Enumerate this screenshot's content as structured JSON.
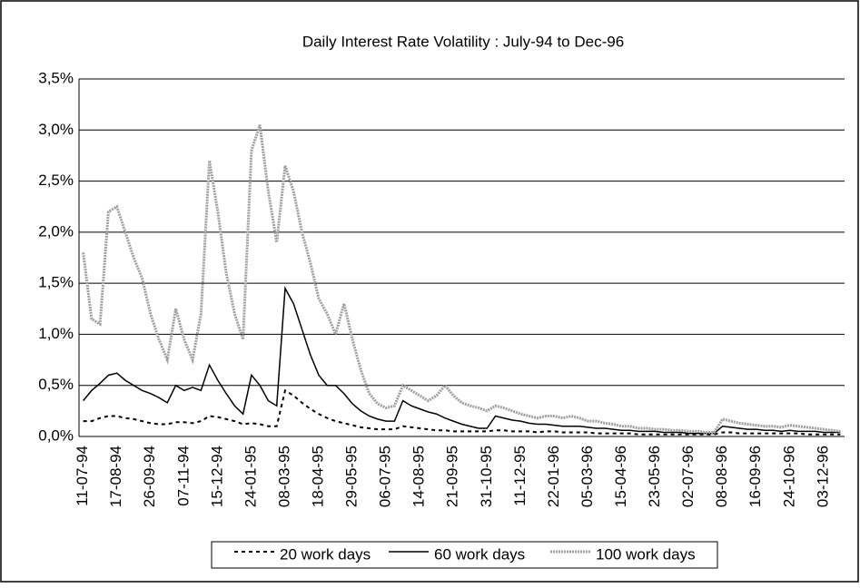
{
  "chart_data": {
    "type": "line",
    "title": "Daily Interest Rate Volatility : July-94 to Dec-96",
    "categories": [
      "11-07-94",
      null,
      null,
      null,
      "17-08-94",
      null,
      null,
      null,
      "26-09-94",
      null,
      null,
      null,
      "07-11-94",
      null,
      null,
      null,
      "15-12-94",
      null,
      null,
      null,
      "24-01-95",
      null,
      null,
      null,
      "08-03-95",
      null,
      null,
      null,
      "18-04-95",
      null,
      null,
      null,
      "29-05-95",
      null,
      null,
      null,
      "06-07-95",
      null,
      null,
      null,
      "14-08-95",
      null,
      null,
      null,
      "21-09-95",
      null,
      null,
      null,
      "31-10-95",
      null,
      null,
      null,
      "11-12-95",
      null,
      null,
      null,
      "22-01-96",
      null,
      null,
      null,
      "05-03-96",
      null,
      null,
      null,
      "15-04-96",
      null,
      null,
      null,
      "23-05-96",
      null,
      null,
      null,
      "02-07-96",
      null,
      null,
      null,
      "08-08-96",
      null,
      null,
      null,
      "16-09-96",
      null,
      null,
      null,
      "24-10-96",
      null,
      null,
      null,
      "03-12-96",
      null,
      null
    ],
    "series": [
      {
        "name": "20 work days",
        "color": "#000000",
        "line_style": "dashed",
        "values": [
          0.15,
          0.15,
          0.18,
          0.2,
          0.2,
          0.18,
          0.17,
          0.15,
          0.13,
          0.12,
          0.12,
          0.14,
          0.14,
          0.13,
          0.15,
          0.2,
          0.19,
          0.17,
          0.15,
          0.12,
          0.13,
          0.12,
          0.1,
          0.1,
          0.45,
          0.4,
          0.33,
          0.27,
          0.22,
          0.18,
          0.15,
          0.13,
          0.11,
          0.09,
          0.08,
          0.07,
          0.07,
          0.07,
          0.1,
          0.09,
          0.08,
          0.07,
          0.06,
          0.06,
          0.05,
          0.05,
          0.05,
          0.05,
          0.05,
          0.06,
          0.06,
          0.05,
          0.05,
          0.05,
          0.04,
          0.05,
          0.05,
          0.04,
          0.04,
          0.04,
          0.04,
          0.03,
          0.03,
          0.03,
          0.03,
          0.03,
          0.02,
          0.02,
          0.02,
          0.02,
          0.02,
          0.02,
          0.02,
          0.02,
          0.02,
          0.02,
          0.04,
          0.04,
          0.03,
          0.03,
          0.03,
          0.03,
          0.03,
          0.03,
          0.03,
          0.03,
          0.02,
          0.02,
          0.02,
          0.02,
          0.02
        ]
      },
      {
        "name": "60 work days",
        "color": "#000000",
        "line_style": "solid",
        "values": [
          0.35,
          0.45,
          0.52,
          0.6,
          0.62,
          0.55,
          0.5,
          0.45,
          0.42,
          0.38,
          0.33,
          0.5,
          0.45,
          0.48,
          0.45,
          0.7,
          0.55,
          0.42,
          0.3,
          0.22,
          0.6,
          0.5,
          0.35,
          0.3,
          1.45,
          1.3,
          1.05,
          0.8,
          0.6,
          0.5,
          0.5,
          0.42,
          0.32,
          0.25,
          0.2,
          0.17,
          0.15,
          0.15,
          0.35,
          0.3,
          0.27,
          0.24,
          0.22,
          0.18,
          0.15,
          0.12,
          0.1,
          0.08,
          0.08,
          0.2,
          0.18,
          0.16,
          0.15,
          0.13,
          0.12,
          0.12,
          0.11,
          0.1,
          0.1,
          0.1,
          0.09,
          0.08,
          0.08,
          0.07,
          0.06,
          0.06,
          0.05,
          0.05,
          0.05,
          0.04,
          0.04,
          0.04,
          0.03,
          0.03,
          0.03,
          0.03,
          0.1,
          0.09,
          0.08,
          0.07,
          0.07,
          0.06,
          0.06,
          0.05,
          0.06,
          0.05,
          0.05,
          0.05,
          0.04,
          0.04,
          0.04
        ]
      },
      {
        "name": "100 work days",
        "color": "#a0a0a0",
        "line_style": "dotted",
        "values": [
          1.8,
          1.15,
          1.1,
          2.2,
          2.25,
          2.0,
          1.75,
          1.55,
          1.2,
          0.95,
          0.75,
          1.25,
          0.95,
          0.75,
          1.2,
          2.7,
          2.2,
          1.6,
          1.2,
          0.95,
          2.8,
          3.05,
          2.4,
          1.9,
          2.65,
          2.4,
          2.0,
          1.7,
          1.35,
          1.2,
          1.0,
          1.3,
          0.95,
          0.65,
          0.42,
          0.32,
          0.28,
          0.3,
          0.5,
          0.45,
          0.4,
          0.35,
          0.4,
          0.5,
          0.4,
          0.33,
          0.3,
          0.28,
          0.25,
          0.3,
          0.28,
          0.25,
          0.22,
          0.2,
          0.18,
          0.2,
          0.2,
          0.18,
          0.2,
          0.18,
          0.15,
          0.15,
          0.13,
          0.12,
          0.1,
          0.1,
          0.08,
          0.08,
          0.07,
          0.07,
          0.06,
          0.06,
          0.05,
          0.05,
          0.04,
          0.04,
          0.17,
          0.15,
          0.13,
          0.12,
          0.11,
          0.1,
          0.1,
          0.09,
          0.11,
          0.1,
          0.09,
          0.08,
          0.07,
          0.06,
          0.05
        ]
      }
    ],
    "ylim": [
      0,
      3.5
    ],
    "yticks": [
      {
        "value": 0,
        "label": "0,0%"
      },
      {
        "value": 0.5,
        "label": "0,5%"
      },
      {
        "value": 1,
        "label": "1,0%"
      },
      {
        "value": 1.5,
        "label": "1,5%"
      },
      {
        "value": 2,
        "label": "2,0%"
      },
      {
        "value": 2.5,
        "label": "2,5%"
      },
      {
        "value": 3,
        "label": "3,0%"
      },
      {
        "value": 3.5,
        "label": "3,5%"
      }
    ],
    "grid": true,
    "legend": "bottom"
  }
}
